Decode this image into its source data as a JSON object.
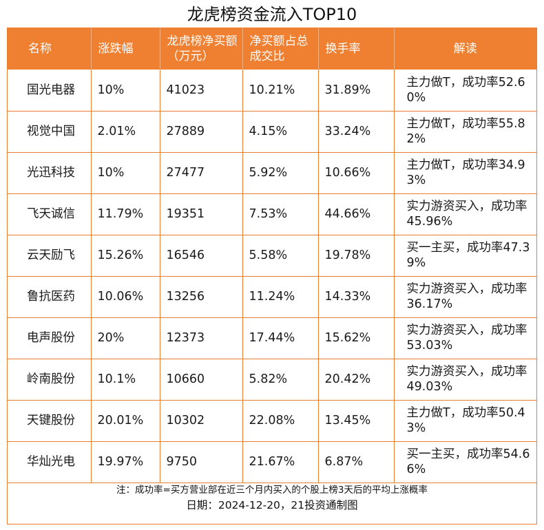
{
  "title": "龙虎榜资金流入TOP10",
  "headers": [
    "名称",
    "涨跌幅",
    "龙虎榜净买额（万元）",
    "净买额占总成交比",
    "换手率",
    "解读"
  ],
  "rows": [
    [
      "国光电器",
      "10%",
      "41023",
      "10.21%",
      "31.89%",
      "主力做T，成功率52.60%"
    ],
    [
      "视觉中国",
      "2.01%",
      "27889",
      "4.15%",
      "33.24%",
      "主力做T，成功率55.82%"
    ],
    [
      "光迅科技",
      "10%",
      "27477",
      "5.92%",
      "10.66%",
      "主力做T，成功率34.93%"
    ],
    [
      "飞天诚信",
      "11.79%",
      "19351",
      "7.53%",
      "44.66%",
      "实力游资买入，成功率45.96%"
    ],
    [
      "云天励飞",
      "15.26%",
      "16546",
      "5.58%",
      "19.78%",
      "买一主买，成功率47.39%"
    ],
    [
      "鲁抗医药",
      "10.06%",
      "13256",
      "11.24%",
      "14.33%",
      "实力游资买入，成功率36.17%"
    ],
    [
      "电声股份",
      "20%",
      "12373",
      "17.44%",
      "15.62%",
      "实力游资买入，成功率53.03%"
    ],
    [
      "岭南股份",
      "10.1%",
      "10660",
      "5.82%",
      "20.42%",
      "实力游资买入，成功率49.03%"
    ],
    [
      "天键股份",
      "20.01%",
      "10302",
      "22.08%",
      "13.45%",
      "主力做T，成功率50.43%"
    ],
    [
      "华灿光电",
      "19.97%",
      "9750",
      "21.67%",
      "6.87%",
      "买一主买，成功率54.66%"
    ]
  ],
  "footer": {
    "note": "注：成功率=买方营业部在近三个月内买入的个股上榜3天后的平均上涨概率",
    "date": "日期：2024-12-20，21投资通制图"
  },
  "colors": {
    "header_bg": "#ef7f31",
    "border": "#e87d2f",
    "header_text": "#ffffff"
  }
}
